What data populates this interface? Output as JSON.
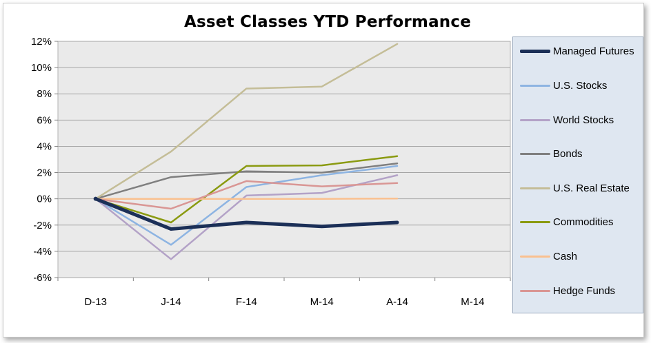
{
  "chart_data": {
    "type": "line",
    "title": "Asset Classes YTD Performance",
    "categories": [
      "D-13",
      "J-14",
      "F-14",
      "M-14",
      "A-14",
      "M-14"
    ],
    "ylim": [
      -6,
      12
    ],
    "yticks": [
      -6,
      -4,
      -2,
      0,
      2,
      4,
      6,
      8,
      10,
      12
    ],
    "ytick_labels": [
      "-6%",
      "-4%",
      "-2%",
      "0%",
      "2%",
      "4%",
      "6%",
      "8%",
      "10%",
      "12%"
    ],
    "grid": true,
    "legend_position": "right",
    "series": [
      {
        "name": "Managed Futures",
        "color": "#1b2f57",
        "width": 5,
        "values": [
          0,
          -2.3,
          -1.8,
          -2.1,
          -1.8,
          null
        ]
      },
      {
        "name": "U.S. Stocks",
        "color": "#8db4e2",
        "width": 2.5,
        "values": [
          0,
          -3.5,
          0.9,
          1.8,
          2.5,
          null
        ]
      },
      {
        "name": "World Stocks",
        "color": "#b3a2c7",
        "width": 2.5,
        "values": [
          0,
          -4.6,
          0.25,
          0.45,
          1.8,
          null
        ]
      },
      {
        "name": "Bonds",
        "color": "#7f7f7f",
        "width": 2.5,
        "values": [
          0,
          1.65,
          2.1,
          2.0,
          2.7,
          null
        ]
      },
      {
        "name": "U.S. Real Estate",
        "color": "#c4bd97",
        "width": 2.5,
        "values": [
          0,
          3.6,
          8.4,
          8.55,
          11.8,
          null
        ]
      },
      {
        "name": "Commodities",
        "color": "#8a9a10",
        "width": 2.5,
        "values": [
          0,
          -1.8,
          2.5,
          2.55,
          3.25,
          null
        ]
      },
      {
        "name": "Cash",
        "color": "#fac08f",
        "width": 2.5,
        "values": [
          0,
          0,
          0,
          0,
          0.02,
          null
        ]
      },
      {
        "name": "Hedge Funds",
        "color": "#d99694",
        "width": 2.5,
        "values": [
          0,
          -0.75,
          1.35,
          0.95,
          1.2,
          null
        ]
      }
    ]
  }
}
